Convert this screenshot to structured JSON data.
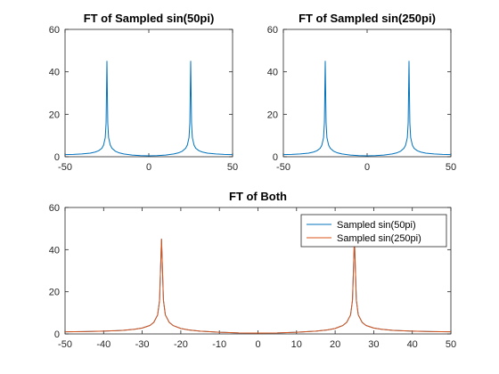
{
  "figure": {
    "background": "#ffffff",
    "axis_color": "#262626",
    "series_colors": [
      "#0072bd",
      "#d95319"
    ]
  },
  "chart_data": [
    {
      "type": "line",
      "title": "FT of Sampled sin(50pi)",
      "xlabel": "",
      "ylabel": "",
      "xlim": [
        -50,
        50
      ],
      "ylim": [
        0,
        60
      ],
      "xticks": [
        -50,
        0,
        50
      ],
      "yticks": [
        0,
        20,
        40,
        60
      ],
      "grid": false,
      "series": [
        {
          "color": "#0072bd",
          "x": [
            -50,
            -45,
            -40,
            -35,
            -32,
            -30,
            -28,
            -27,
            -26,
            -25.5,
            -25,
            -24.5,
            -24,
            -23,
            -22,
            -20,
            -18,
            -15,
            -10,
            -5,
            0,
            5,
            10,
            15,
            18,
            20,
            22,
            23,
            24,
            24.5,
            25,
            25.5,
            26,
            27,
            28,
            30,
            32,
            35,
            40,
            45,
            50
          ],
          "y": [
            1.0,
            1.1,
            1.3,
            1.7,
            2.2,
            2.8,
            4.0,
            5.5,
            9,
            16,
            45,
            16,
            9,
            5.5,
            4.0,
            2.6,
            1.9,
            1.3,
            0.8,
            0.5,
            0.4,
            0.5,
            0.8,
            1.3,
            1.9,
            2.6,
            4.0,
            5.5,
            9,
            16,
            45,
            16,
            9,
            5.5,
            4.0,
            2.8,
            2.2,
            1.7,
            1.3,
            1.1,
            1.0
          ]
        }
      ]
    },
    {
      "type": "line",
      "title": "FT of Sampled sin(250pi)",
      "xlabel": "",
      "ylabel": "",
      "xlim": [
        -50,
        50
      ],
      "ylim": [
        0,
        60
      ],
      "xticks": [
        -50,
        0,
        50
      ],
      "yticks": [
        0,
        20,
        40,
        60
      ],
      "grid": false,
      "series": [
        {
          "color": "#0072bd",
          "x": [
            -50,
            -45,
            -40,
            -35,
            -32,
            -30,
            -28,
            -27,
            -26,
            -25.5,
            -25,
            -24.5,
            -24,
            -23,
            -22,
            -20,
            -18,
            -15,
            -10,
            -5,
            0,
            5,
            10,
            15,
            18,
            20,
            22,
            23,
            24,
            24.5,
            25,
            25.5,
            26,
            27,
            28,
            30,
            32,
            35,
            40,
            45,
            50
          ],
          "y": [
            1.0,
            1.1,
            1.3,
            1.7,
            2.2,
            2.8,
            4.0,
            5.5,
            9,
            16,
            45,
            16,
            9,
            5.5,
            4.0,
            2.6,
            1.9,
            1.3,
            0.8,
            0.5,
            0.4,
            0.5,
            0.8,
            1.3,
            1.9,
            2.6,
            4.0,
            5.5,
            9,
            16,
            45,
            16,
            9,
            5.5,
            4.0,
            2.8,
            2.2,
            1.7,
            1.3,
            1.1,
            1.0
          ]
        }
      ]
    },
    {
      "type": "line",
      "title": "FT of Both",
      "xlabel": "",
      "ylabel": "",
      "xlim": [
        -50,
        50
      ],
      "ylim": [
        0,
        60
      ],
      "xticks": [
        -50,
        -40,
        -30,
        -20,
        -10,
        0,
        10,
        20,
        30,
        40,
        50
      ],
      "yticks": [
        0,
        20,
        40,
        60
      ],
      "grid": false,
      "legend": "top-right",
      "series": [
        {
          "name": "Sampled sin(50pi)",
          "color": "#0072bd",
          "x": [
            -50,
            -45,
            -40,
            -35,
            -32,
            -30,
            -28,
            -27,
            -26,
            -25.5,
            -25,
            -24.5,
            -24,
            -23,
            -22,
            -20,
            -18,
            -15,
            -10,
            -5,
            0,
            5,
            10,
            15,
            18,
            20,
            22,
            23,
            24,
            24.5,
            25,
            25.5,
            26,
            27,
            28,
            30,
            32,
            35,
            40,
            45,
            50
          ],
          "y": [
            1.0,
            1.1,
            1.3,
            1.7,
            2.2,
            2.8,
            4.0,
            5.5,
            9,
            16,
            45,
            16,
            9,
            5.5,
            4.0,
            2.6,
            1.9,
            1.3,
            0.8,
            0.5,
            0.4,
            0.5,
            0.8,
            1.3,
            1.9,
            2.6,
            4.0,
            5.5,
            9,
            16,
            45,
            16,
            9,
            5.5,
            4.0,
            2.8,
            2.2,
            1.7,
            1.3,
            1.1,
            1.0
          ]
        },
        {
          "name": "Sampled sin(250pi)",
          "color": "#d95319",
          "x": [
            -50,
            -45,
            -40,
            -35,
            -32,
            -30,
            -28,
            -27,
            -26,
            -25.5,
            -25,
            -24.5,
            -24,
            -23,
            -22,
            -20,
            -18,
            -15,
            -10,
            -5,
            0,
            5,
            10,
            15,
            18,
            20,
            22,
            23,
            24,
            24.5,
            25,
            25.5,
            26,
            27,
            28,
            30,
            32,
            35,
            40,
            45,
            50
          ],
          "y": [
            1.0,
            1.1,
            1.3,
            1.7,
            2.2,
            2.8,
            4.0,
            5.5,
            9,
            16,
            45,
            16,
            9,
            5.5,
            4.0,
            2.6,
            1.9,
            1.3,
            0.8,
            0.5,
            0.4,
            0.5,
            0.8,
            1.3,
            1.9,
            2.6,
            4.0,
            5.5,
            9,
            16,
            45,
            16,
            9,
            5.5,
            4.0,
            2.8,
            2.2,
            1.7,
            1.3,
            1.1,
            1.0
          ]
        }
      ]
    }
  ]
}
